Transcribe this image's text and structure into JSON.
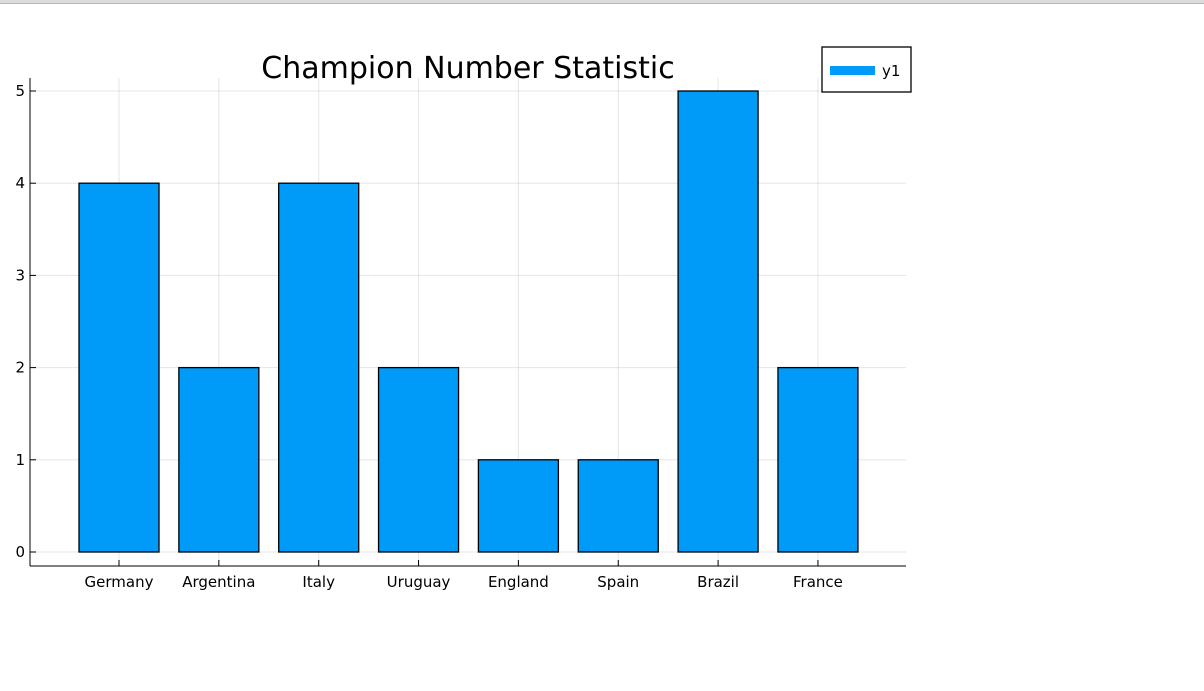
{
  "chart_data": {
    "type": "bar",
    "title": "Champion Number Statistic",
    "xlabel": "",
    "ylabel": "",
    "categories": [
      "Germany",
      "Argentina",
      "Italy",
      "Uruguay",
      "England",
      "Spain",
      "Brazil",
      "France"
    ],
    "series": [
      {
        "name": "y1",
        "values": [
          4,
          2,
          4,
          2,
          1,
          1,
          5,
          2
        ],
        "color": "#009AF9"
      }
    ],
    "ylim": [
      0,
      5
    ],
    "yticks": [
      "0",
      "1",
      "2",
      "3",
      "4",
      "5"
    ],
    "grid": true,
    "legend_position": "top-right"
  }
}
